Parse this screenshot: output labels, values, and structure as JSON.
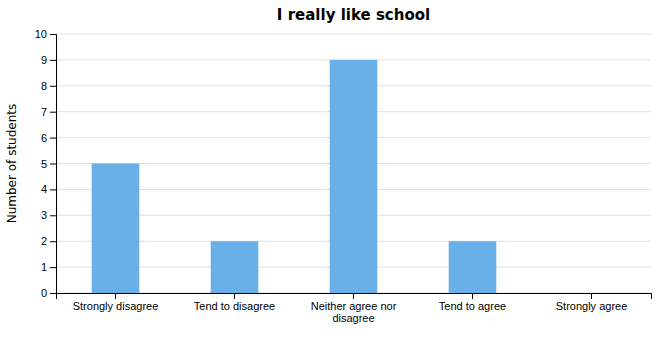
{
  "chart_data": {
    "type": "bar",
    "title": "I really like school",
    "categories": [
      "Strongly disagree",
      "Tend to disagree",
      "Neither agree nor\ndisagree",
      "Tend to agree",
      "Strongly agree"
    ],
    "values": [
      5,
      2,
      9,
      2,
      0
    ],
    "color": "#6ab0e8",
    "ylabel": "Number of students",
    "ylim": [
      0,
      10
    ],
    "yticks": [
      0,
      1,
      2,
      3,
      4,
      5,
      6,
      7,
      8,
      9,
      10
    ],
    "grid": true
  }
}
